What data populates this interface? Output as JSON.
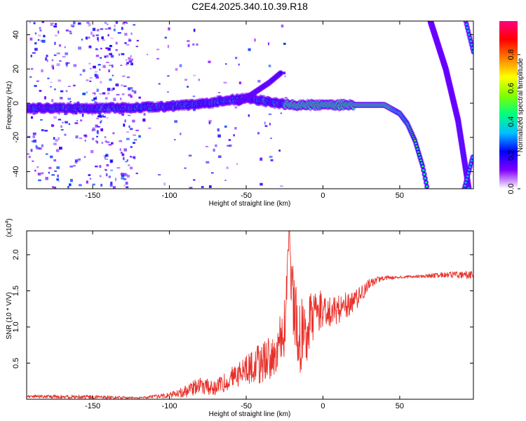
{
  "chart_data": [
    {
      "type": "heatmap",
      "title": "C2E4.2025.340.10.39.R18",
      "xlabel": "Height of straight line (km)",
      "ylabel": "Frequency (Hz)",
      "xlim": [
        -193,
        98
      ],
      "ylim": [
        -50,
        48
      ],
      "x_ticks": [
        -150,
        -100,
        -50,
        0,
        50
      ],
      "y_ticks": [
        40,
        20,
        0,
        -20,
        -40
      ],
      "colorbar": {
        "label": "Normalized spectral amplitude",
        "range": [
          0,
          1
        ],
        "ticks": [
          0.0,
          0.2,
          0.4,
          0.6,
          0.8
        ],
        "colors": [
          "#ffffff",
          "#8000ff",
          "#0000ff",
          "#00c0ff",
          "#00ff80",
          "#80ff00",
          "#ffff00",
          "#ff8000",
          "#ff0000",
          "#ff0080"
        ]
      },
      "ridges": [
        {
          "name": "main echo",
          "points": [
            [
              -193,
              -3
            ],
            [
              -150,
              -3
            ],
            [
              -100,
              -2
            ],
            [
              -75,
              0
            ],
            [
              -60,
              2
            ],
            [
              -50,
              3
            ],
            [
              -30,
              0
            ],
            [
              -20,
              -1
            ],
            [
              0,
              -1
            ],
            [
              20,
              -1
            ],
            [
              40,
              -1
            ],
            [
              50,
              -6
            ],
            [
              55,
              -12
            ],
            [
              60,
              -22
            ],
            [
              65,
              -37
            ],
            [
              68,
              -50
            ]
          ]
        },
        {
          "name": "upper streak",
          "points": [
            [
              -55,
              0
            ],
            [
              -45,
              6
            ],
            [
              -35,
              12
            ],
            [
              -27,
              18
            ]
          ]
        },
        {
          "name": "diagonal line A",
          "points": [
            [
              70,
              48
            ],
            [
              80,
              20
            ],
            [
              88,
              -10
            ],
            [
              95,
              -50
            ]
          ]
        },
        {
          "name": "diagonal line B",
          "points": [
            [
              93,
              48
            ],
            [
              98,
              30
            ]
          ]
        },
        {
          "name": "diagonal line C",
          "points": [
            [
              98,
              -30
            ],
            [
              92,
              -50
            ]
          ]
        }
      ]
    },
    {
      "type": "line",
      "xlabel": "Height of straight line (km)",
      "ylabel": "SNR (10 * V/V)",
      "scale_label": "(x10",
      "scale_exponent": "4",
      "scale_close": ")",
      "xlim": [
        -193,
        98
      ],
      "ylim": [
        0,
        2.33
      ],
      "x_ticks": [
        -150,
        -100,
        -50,
        0,
        50
      ],
      "y_ticks": [
        0.5,
        1.0,
        1.5,
        2.0
      ],
      "y_tick_labels": [
        "0.5",
        "1.0",
        "1.5",
        "2.0"
      ],
      "series": [
        {
          "name": "SNR",
          "color": "#e8302a",
          "x": [
            -193,
            -150,
            -120,
            -100,
            -90,
            -80,
            -70,
            -60,
            -50,
            -40,
            -30,
            -25,
            -22,
            -20,
            -15,
            -10,
            -5,
            0,
            5,
            10,
            15,
            20,
            25,
            30,
            35,
            40,
            50,
            60,
            70,
            80,
            90,
            98
          ],
          "y": [
            0.04,
            0.03,
            0.02,
            0.05,
            0.1,
            0.2,
            0.15,
            0.3,
            0.4,
            0.5,
            0.7,
            1.0,
            2.3,
            1.3,
            0.9,
            1.0,
            1.2,
            1.25,
            1.2,
            1.25,
            1.3,
            1.35,
            1.45,
            1.6,
            1.65,
            1.68,
            1.69,
            1.7,
            1.71,
            1.72,
            1.72,
            1.72
          ],
          "noise": [
            0.02,
            0.03,
            0.01,
            0.04,
            0.08,
            0.12,
            0.12,
            0.15,
            0.2,
            0.3,
            0.35,
            0.4,
            0.1,
            0.6,
            0.55,
            0.45,
            0.3,
            0.25,
            0.2,
            0.2,
            0.18,
            0.15,
            0.12,
            0.08,
            0.05,
            0.03,
            0.02,
            0.02,
            0.03,
            0.04,
            0.05,
            0.06
          ]
        }
      ]
    }
  ]
}
